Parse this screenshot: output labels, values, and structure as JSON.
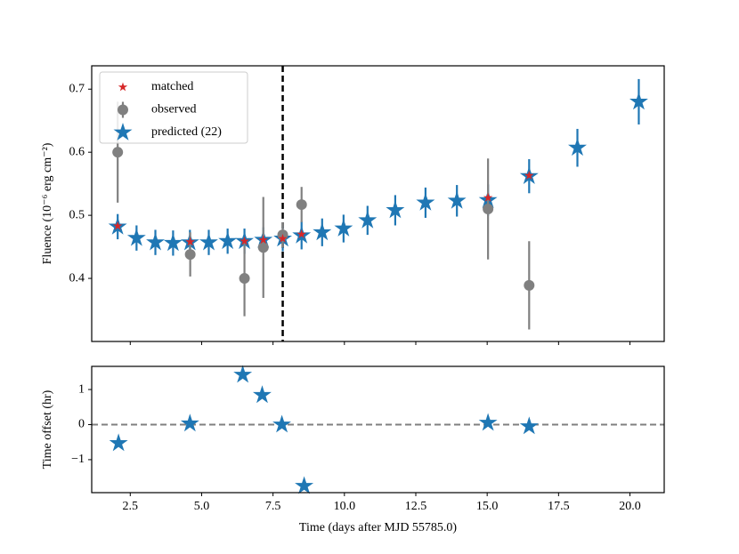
{
  "chart_data": [
    {
      "type": "errorbar",
      "ylabel": "Fluence (10⁻⁶ erg cm⁻²)",
      "xlim": [
        1.15,
        21.2
      ],
      "ylim": [
        0.3,
        0.737
      ],
      "yticks": [
        0.4,
        0.5,
        0.6,
        0.7
      ],
      "vline": 7.84,
      "legend": "upper left",
      "series": [
        {
          "name": "matched",
          "color": "#d62728",
          "marker": "star",
          "x": [
            2.06,
            4.6,
            6.5,
            7.16,
            7.84,
            8.5,
            15.03,
            16.47
          ],
          "values": [
            0.483,
            0.458,
            0.459,
            0.461,
            0.463,
            0.47,
            0.528,
            0.563
          ]
        },
        {
          "name": "observed",
          "color": "#808080",
          "marker": "circle",
          "x": [
            2.06,
            4.6,
            6.5,
            7.16,
            7.84,
            8.5,
            15.03,
            16.47
          ],
          "values": [
            0.6,
            0.438,
            0.4,
            0.449,
            0.469,
            0.517,
            0.51,
            0.389
          ],
          "errors": [
            0.08,
            0.035,
            0.06,
            0.08,
            0.02,
            0.028,
            0.08,
            0.07
          ]
        },
        {
          "name": "predicted (22)",
          "color": "#1f77b4",
          "marker": "star",
          "x": [
            2.06,
            2.72,
            3.38,
            4.0,
            4.59,
            5.25,
            5.91,
            6.5,
            7.16,
            7.84,
            8.5,
            9.22,
            9.97,
            10.81,
            11.78,
            12.84,
            13.94,
            15.03,
            16.47,
            18.16,
            20.31
          ],
          "values": [
            0.482,
            0.464,
            0.457,
            0.456,
            0.457,
            0.457,
            0.459,
            0.459,
            0.461,
            0.463,
            0.468,
            0.473,
            0.479,
            0.492,
            0.508,
            0.52,
            0.523,
            0.524,
            0.562,
            0.607,
            0.68
          ],
          "errors": [
            0.02,
            0.02,
            0.02,
            0.02,
            0.02,
            0.02,
            0.02,
            0.02,
            0.02,
            0.02,
            0.022,
            0.022,
            0.022,
            0.023,
            0.024,
            0.024,
            0.025,
            0.025,
            0.027,
            0.03,
            0.036
          ]
        }
      ]
    },
    {
      "type": "scatter",
      "xlabel": "Time (days after MJD 55785.0)",
      "ylabel": "Time offset (hr)",
      "xlim": [
        1.15,
        21.2
      ],
      "ylim": [
        -1.94,
        1.66
      ],
      "xticks": [
        2.5,
        {
          "value": 5,
          "label": "5.0"
        },
        7.5,
        {
          "value": 10,
          "label": "10.0"
        },
        12.5,
        {
          "value": 15,
          "label": "15.0"
        },
        17.5,
        {
          "value": 20,
          "label": "20.0"
        }
      ],
      "yticks": [
        {
          "value": -1,
          "label": "−1"
        },
        0,
        1
      ],
      "hline": 0,
      "color": "#1f77b4",
      "marker": "star",
      "x": [
        2.09,
        4.59,
        6.44,
        7.12,
        7.81,
        8.59,
        15.03,
        16.47
      ],
      "values": [
        -0.53,
        0.03,
        1.42,
        0.84,
        0,
        -1.75,
        0.05,
        -0.05
      ]
    }
  ]
}
